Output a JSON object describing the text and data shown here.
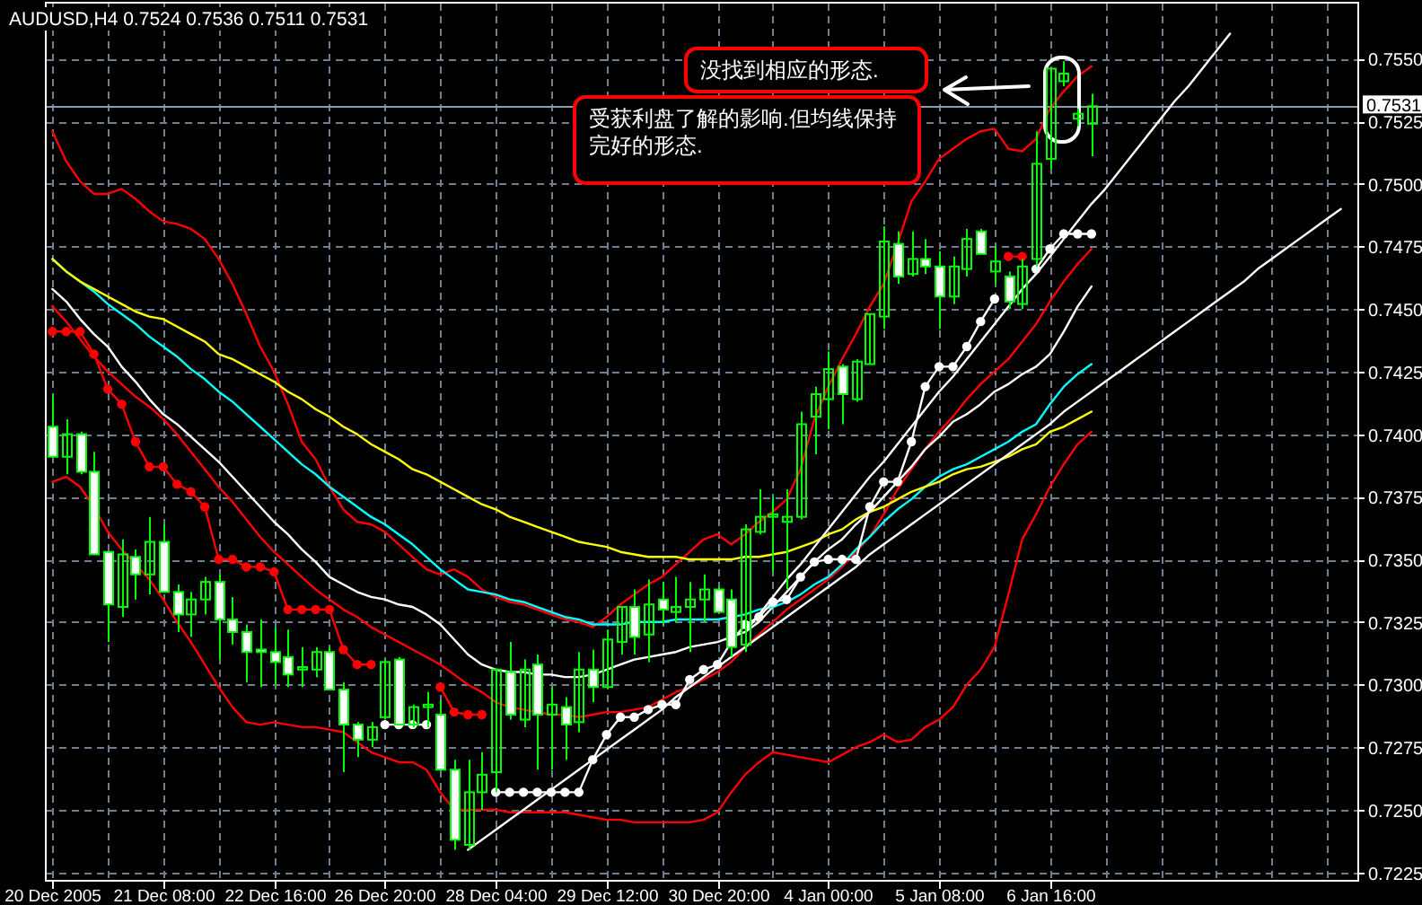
{
  "chart_data": {
    "type": "candlestick",
    "title": "AUDUSD,H4 0.7524 0.7536 0.7511 0.7531",
    "color": "#00ff00",
    "categories": [
      "20 Dec 2005",
      null,
      null,
      null,
      null,
      null,
      null,
      null,
      "21 Dec 08:00",
      null,
      null,
      null,
      null,
      null,
      null,
      null,
      "22 Dec 16:00",
      null,
      null,
      null,
      null,
      null,
      null,
      null,
      "26 Dec 20:00",
      null,
      null,
      null,
      null,
      null,
      null,
      null,
      "28 Dec 04:00",
      null,
      null,
      null,
      null,
      null,
      null,
      null,
      "29 Dec 12:00",
      null,
      null,
      null,
      null,
      null,
      null,
      null,
      "30 Dec 20:00",
      null,
      null,
      null,
      null,
      null,
      null,
      null,
      "4 Jan 00:00",
      null,
      null,
      null,
      null,
      null,
      null,
      null,
      "5 Jan 08:00",
      null,
      null,
      null,
      null,
      null,
      null,
      null,
      "6 Jan 16:00",
      null,
      null,
      null,
      null,
      null,
      null,
      null,
      null,
      null,
      null,
      null,
      null,
      null,
      null,
      null,
      null,
      null,
      null,
      null,
      null,
      null
    ],
    "ohlc": [
      [
        0.7403,
        0.7416,
        0.7391,
        0.7391
      ],
      [
        0.7391,
        0.7406,
        0.7384,
        0.74
      ],
      [
        0.74,
        0.7401,
        0.7384,
        0.7385
      ],
      [
        0.7385,
        0.7393,
        0.7352,
        0.7352
      ],
      [
        0.7353,
        0.7353,
        0.7317,
        0.7332
      ],
      [
        0.7331,
        0.7358,
        0.7327,
        0.7352
      ],
      [
        0.7351,
        0.7354,
        0.7334,
        0.7344
      ],
      [
        0.7344,
        0.7367,
        0.7336,
        0.7357
      ],
      [
        0.7357,
        0.7364,
        0.7337,
        0.7337
      ],
      [
        0.7337,
        0.734,
        0.7321,
        0.7328
      ],
      [
        0.7328,
        0.7337,
        0.7319,
        0.7334
      ],
      [
        0.7334,
        0.7343,
        0.7328,
        0.7341
      ],
      [
        0.7341,
        0.7344,
        0.731,
        0.7326
      ],
      [
        0.7326,
        0.7335,
        0.7316,
        0.7321
      ],
      [
        0.7321,
        0.7324,
        0.7301,
        0.7313
      ],
      [
        0.7314,
        0.7326,
        0.7299,
        0.7313
      ],
      [
        0.7313,
        0.7323,
        0.73,
        0.7309
      ],
      [
        0.7311,
        0.7322,
        0.7299,
        0.7304
      ],
      [
        0.7306,
        0.7315,
        0.7299,
        0.7307
      ],
      [
        0.7306,
        0.7315,
        0.7303,
        0.7313
      ],
      [
        0.7313,
        0.7315,
        0.7298,
        0.7298
      ],
      [
        0.7298,
        0.7301,
        0.7265,
        0.7284
      ],
      [
        0.7284,
        0.7285,
        0.7271,
        0.7278
      ],
      [
        0.7278,
        0.7285,
        0.7275,
        0.7283
      ],
      [
        0.7287,
        0.731,
        0.7286,
        0.7309
      ],
      [
        0.731,
        0.7311,
        0.7284,
        0.7284
      ],
      [
        0.7284,
        0.7292,
        0.7283,
        0.7291
      ],
      [
        0.7291,
        0.7297,
        0.7283,
        0.7292
      ],
      [
        0.7288,
        0.7294,
        0.7266,
        0.7266
      ],
      [
        0.7266,
        0.727,
        0.7234,
        0.7238
      ],
      [
        0.7236,
        0.727,
        0.7234,
        0.7257
      ],
      [
        0.7257,
        0.7273,
        0.725,
        0.7264
      ],
      [
        0.7265,
        0.7306,
        0.7257,
        0.7306
      ],
      [
        0.7305,
        0.7317,
        0.7286,
        0.7288
      ],
      [
        0.7286,
        0.731,
        0.7283,
        0.7306
      ],
      [
        0.7308,
        0.7312,
        0.7266,
        0.7288
      ],
      [
        0.7288,
        0.7299,
        0.7266,
        0.7292
      ],
      [
        0.7291,
        0.7295,
        0.727,
        0.7284
      ],
      [
        0.7285,
        0.7313,
        0.7281,
        0.7306
      ],
      [
        0.7306,
        0.7314,
        0.7293,
        0.7299
      ],
      [
        0.7299,
        0.7322,
        0.7299,
        0.7318
      ],
      [
        0.7317,
        0.7331,
        0.7312,
        0.7331
      ],
      [
        0.7331,
        0.7338,
        0.7312,
        0.7319
      ],
      [
        0.732,
        0.7342,
        0.7309,
        0.7332
      ],
      [
        0.7334,
        0.7341,
        0.7324,
        0.733
      ],
      [
        0.7329,
        0.7343,
        0.7325,
        0.7331
      ],
      [
        0.7331,
        0.7341,
        0.7313,
        0.7334
      ],
      [
        0.7334,
        0.7344,
        0.7325,
        0.7338
      ],
      [
        0.7338,
        0.7339,
        0.7329,
        0.7329
      ],
      [
        0.7334,
        0.7338,
        0.7311,
        0.7315
      ],
      [
        0.7316,
        0.7364,
        0.7313,
        0.7362
      ],
      [
        0.7361,
        0.7378,
        0.736,
        0.7367
      ],
      [
        0.7367,
        0.7375,
        0.7345,
        0.7368
      ],
      [
        0.7365,
        0.7378,
        0.7338,
        0.7367
      ],
      [
        0.7367,
        0.7409,
        0.7366,
        0.7404
      ],
      [
        0.7407,
        0.7419,
        0.7392,
        0.7416
      ],
      [
        0.7414,
        0.7433,
        0.7402,
        0.7426
      ],
      [
        0.7427,
        0.7428,
        0.7404,
        0.7416
      ],
      [
        0.7414,
        0.743,
        0.7413,
        0.7429
      ],
      [
        0.7428,
        0.7448,
        0.7428,
        0.7448
      ],
      [
        0.7447,
        0.7483,
        0.7442,
        0.7477
      ],
      [
        0.7476,
        0.7481,
        0.746,
        0.7463
      ],
      [
        0.7464,
        0.7481,
        0.7463,
        0.747
      ],
      [
        0.747,
        0.7478,
        0.7464,
        0.7467
      ],
      [
        0.7467,
        0.7473,
        0.7442,
        0.7455
      ],
      [
        0.7455,
        0.7471,
        0.7452,
        0.7467
      ],
      [
        0.7466,
        0.7482,
        0.7463,
        0.7478
      ],
      [
        0.7481,
        0.7482,
        0.7472,
        0.7472
      ],
      [
        0.7465,
        0.7475,
        0.746,
        0.7469
      ],
      [
        0.7463,
        0.7465,
        0.745,
        0.7453
      ],
      [
        0.7452,
        0.747,
        0.745,
        0.7467
      ],
      [
        0.747,
        0.7521,
        0.7467,
        0.7508
      ],
      [
        0.751,
        0.7546,
        0.7506,
        0.7546
      ],
      [
        0.7541,
        0.7549,
        0.7539,
        0.7544
      ],
      [
        0.7526,
        0.753,
        0.7523,
        0.7528
      ],
      [
        0.7524,
        0.7536,
        0.7511,
        0.7531
      ],
      null,
      null,
      null,
      null,
      null,
      null,
      null,
      null,
      null,
      null,
      null,
      null,
      null,
      null,
      null,
      null,
      null,
      null
    ],
    "ylim": [
      0.7222,
      0.7572
    ],
    "yticks": [
      {
        "value": 0.7225,
        "label": "0.7225"
      },
      {
        "value": 0.725,
        "label": "0.7250"
      },
      {
        "value": 0.7275,
        "label": "0.7275"
      },
      {
        "value": 0.73,
        "label": "0.7300"
      },
      {
        "value": 0.7325,
        "label": "0.7325"
      },
      {
        "value": 0.735,
        "label": "0.7350"
      },
      {
        "value": 0.7375,
        "label": "0.7375"
      },
      {
        "value": 0.74,
        "label": "0.7400"
      },
      {
        "value": 0.7425,
        "label": "0.7425"
      },
      {
        "value": 0.745,
        "label": "0.7450"
      },
      {
        "value": 0.7475,
        "label": "0.7475"
      },
      {
        "value": 0.75,
        "label": "0.7500"
      },
      {
        "value": 0.7525,
        "label": "0.7525"
      },
      {
        "value": 0.755,
        "label": "0.7550"
      }
    ],
    "grid": true,
    "series": [
      {
        "type": "line",
        "color": "#ff0000",
        "values": [
          0.7521,
          0.7509,
          0.7501,
          0.7496,
          0.7496,
          0.7498,
          0.7494,
          0.7489,
          0.7485,
          0.7484,
          0.7482,
          0.7478,
          0.747,
          0.746,
          0.7448,
          0.7435,
          0.7425,
          0.7412,
          0.7397,
          0.739,
          0.7379,
          0.737,
          0.7365,
          0.7364,
          0.7361,
          0.7356,
          0.7351,
          0.7346,
          0.7344,
          0.7346,
          0.7343,
          0.7338,
          0.7335,
          0.7333,
          0.7332,
          0.733,
          0.7328,
          0.7326,
          0.7325,
          0.7323,
          0.7327,
          0.7332,
          0.7336,
          0.734,
          0.7343,
          0.7348,
          0.7353,
          0.7358,
          0.736,
          0.7356,
          0.736,
          0.7365,
          0.7369,
          0.7374,
          0.7386,
          0.7406,
          0.7419,
          0.743,
          0.744,
          0.7451,
          0.746,
          0.7476,
          0.7493,
          0.7501,
          0.751,
          0.7514,
          0.7518,
          0.7521,
          0.7522,
          0.7514,
          0.7513,
          0.7518,
          0.753,
          0.7537,
          0.7543,
          0.7547,
          null,
          null,
          null,
          null,
          null,
          null,
          null,
          null,
          null,
          null,
          null,
          null,
          null,
          null,
          null,
          null,
          null,
          null
        ]
      },
      {
        "type": "line",
        "color": "#ff0000",
        "values": [
          0.7451,
          0.7445,
          0.7438,
          0.7431,
          0.7425,
          0.742,
          0.7415,
          0.7411,
          0.7406,
          0.74,
          0.7393,
          0.7386,
          0.7379,
          0.7373,
          0.7366,
          0.7359,
          0.7353,
          0.7348,
          0.7343,
          0.7338,
          0.7334,
          0.733,
          0.7327,
          0.7323,
          0.732,
          0.7317,
          0.7314,
          0.7311,
          0.7308,
          0.7304,
          0.73,
          0.7297,
          0.7293,
          0.7291,
          0.729,
          0.7289,
          0.7288,
          0.7288,
          0.7287,
          0.7288,
          0.7289,
          0.7289,
          0.729,
          0.7291,
          0.7294,
          0.7297,
          0.7299,
          0.7302,
          0.7305,
          0.7309,
          0.7315,
          0.732,
          0.7325,
          0.733,
          0.7334,
          0.7338,
          0.7342,
          0.7347,
          0.7353,
          0.7359,
          0.7368,
          0.7378,
          0.7386,
          0.7394,
          0.7401,
          0.7407,
          0.7414,
          0.742,
          0.7425,
          0.743,
          0.7437,
          0.7444,
          0.7453,
          0.7461,
          0.7468,
          0.7474,
          null,
          null,
          null,
          null,
          null,
          null,
          null,
          null,
          null,
          null,
          null,
          null,
          null,
          null,
          null,
          null,
          null,
          null
        ]
      },
      {
        "type": "line",
        "color": "#ff0000",
        "values": [
          0.7381,
          0.7383,
          0.7379,
          0.7371,
          0.7361,
          0.7354,
          0.7348,
          0.7342,
          0.7334,
          0.7325,
          0.7317,
          0.7308,
          0.7299,
          0.7291,
          0.7285,
          0.7284,
          0.7285,
          0.7284,
          0.7283,
          0.7283,
          0.7282,
          0.7281,
          0.7277,
          0.7273,
          0.7271,
          0.7269,
          0.7269,
          0.7266,
          0.7257,
          0.725,
          0.725,
          0.725,
          0.725,
          0.7249,
          0.7249,
          0.7249,
          0.7249,
          0.7249,
          0.7248,
          0.7247,
          0.7246,
          0.7246,
          0.7245,
          0.7245,
          0.7245,
          0.7245,
          0.7245,
          0.7246,
          0.7249,
          0.7257,
          0.7264,
          0.7269,
          0.7273,
          0.7272,
          0.7271,
          0.727,
          0.7269,
          0.7272,
          0.7275,
          0.7277,
          0.728,
          0.7277,
          0.7278,
          0.7283,
          0.7286,
          0.7291,
          0.73,
          0.7306,
          0.7315,
          0.7336,
          0.7358,
          0.7368,
          0.7379,
          0.7388,
          0.7396,
          0.7401,
          null,
          null,
          null,
          null,
          null,
          null,
          null,
          null,
          null,
          null,
          null,
          null,
          null,
          null,
          null,
          null,
          null,
          null
        ]
      },
      {
        "type": "line",
        "color": "#ffffff",
        "values": [
          0.7458,
          0.7453,
          0.7446,
          0.744,
          0.7435,
          0.7427,
          0.7421,
          0.7414,
          0.7408,
          0.7404,
          0.7399,
          0.7394,
          0.7389,
          0.7383,
          0.7377,
          0.7371,
          0.7365,
          0.736,
          0.7354,
          0.7349,
          0.7343,
          0.734,
          0.7337,
          0.7335,
          0.7334,
          0.7332,
          0.7331,
          0.7328,
          0.7324,
          0.7318,
          0.7312,
          0.7308,
          0.7306,
          0.7305,
          0.7305,
          0.7304,
          0.7304,
          0.7303,
          0.7303,
          0.7304,
          0.7306,
          0.7308,
          0.731,
          0.7311,
          0.7312,
          0.7313,
          0.7315,
          0.7316,
          0.7317,
          0.7319,
          0.7321,
          0.7325,
          0.7331,
          0.7337,
          0.7343,
          0.7349,
          0.7354,
          0.7358,
          0.7364,
          0.7369,
          0.7375,
          0.7381,
          0.7387,
          0.7394,
          0.7399,
          0.7405,
          0.7408,
          0.7412,
          0.7417,
          0.742,
          0.7424,
          0.7427,
          0.7432,
          0.7441,
          0.7451,
          0.7459,
          null,
          null,
          null,
          null,
          null,
          null,
          null,
          null,
          null,
          null,
          null,
          null,
          null,
          null,
          null,
          null,
          null,
          null
        ]
      },
      {
        "type": "line",
        "color": "#00ffff",
        "values": [
          0.747,
          0.7465,
          0.7461,
          0.7457,
          0.7452,
          0.7448,
          0.7444,
          0.7439,
          0.7435,
          0.7431,
          0.7426,
          0.7422,
          0.7417,
          0.7413,
          0.7408,
          0.7403,
          0.7398,
          0.7393,
          0.7388,
          0.7384,
          0.7379,
          0.7375,
          0.7371,
          0.7367,
          0.7364,
          0.736,
          0.7356,
          0.7351,
          0.7346,
          0.7342,
          0.7338,
          0.7337,
          0.7336,
          0.7334,
          0.7333,
          0.7331,
          0.7329,
          0.7327,
          0.7326,
          0.7324,
          0.7324,
          0.7324,
          0.7325,
          0.7325,
          0.7325,
          0.7326,
          0.7326,
          0.7326,
          0.7326,
          0.7327,
          0.7328,
          0.733,
          0.7331,
          0.7333,
          0.7336,
          0.734,
          0.7343,
          0.7348,
          0.7354,
          0.7359,
          0.7365,
          0.737,
          0.7374,
          0.7379,
          0.7383,
          0.7386,
          0.7388,
          0.7391,
          0.7394,
          0.7397,
          0.7401,
          0.7404,
          0.7412,
          0.7419,
          0.7424,
          0.7428,
          null,
          null,
          null,
          null,
          null,
          null,
          null,
          null,
          null,
          null,
          null,
          null,
          null,
          null,
          null,
          null,
          null,
          null
        ]
      },
      {
        "type": "line",
        "color": "#ffff00",
        "values": [
          0.747,
          0.7465,
          0.7461,
          0.7458,
          0.7455,
          0.7452,
          0.7449,
          0.7447,
          0.7446,
          0.7443,
          0.744,
          0.7437,
          0.7432,
          0.743,
          0.7427,
          0.7424,
          0.7421,
          0.7417,
          0.7414,
          0.741,
          0.7407,
          0.7403,
          0.74,
          0.7396,
          0.7393,
          0.739,
          0.7386,
          0.7384,
          0.7381,
          0.7378,
          0.7375,
          0.7372,
          0.737,
          0.7367,
          0.7365,
          0.7363,
          0.7361,
          0.7359,
          0.7357,
          0.7356,
          0.7355,
          0.7353,
          0.7352,
          0.7351,
          0.7351,
          0.7351,
          0.735,
          0.735,
          0.735,
          0.735,
          0.7351,
          0.7351,
          0.7352,
          0.7353,
          0.7355,
          0.7357,
          0.736,
          0.7362,
          0.7366,
          0.7369,
          0.7371,
          0.7374,
          0.7377,
          0.7379,
          0.7381,
          0.7384,
          0.7386,
          0.7387,
          0.7389,
          0.7391,
          0.7394,
          0.7396,
          0.7401,
          0.7403,
          0.7406,
          0.7409,
          null,
          null,
          null,
          null,
          null,
          null,
          null,
          null,
          null,
          null,
          null,
          null,
          null,
          null,
          null,
          null,
          null,
          null
        ]
      },
      {
        "type": "line",
        "color": "#ff0000",
        "marker": "circle",
        "values": [
          0.7441,
          0.7441,
          0.7441,
          0.7432,
          0.7418,
          0.7412,
          0.7397,
          0.7387,
          0.7387,
          0.738,
          0.7377,
          0.7371,
          0.735,
          0.735,
          0.7347,
          0.7347,
          0.7345,
          0.733,
          0.733,
          0.733,
          0.733,
          0.7314,
          0.7308,
          0.7308,
          null,
          null,
          null,
          null,
          0.7299,
          0.7289,
          0.7288,
          0.7288,
          null,
          null,
          null,
          null,
          null,
          null,
          null,
          null,
          null,
          null,
          null,
          null,
          null,
          null,
          null,
          null,
          null,
          null,
          null,
          null,
          null,
          null,
          null,
          null,
          null,
          null,
          null,
          null,
          null,
          null,
          null,
          null,
          null,
          null,
          null,
          null,
          null,
          0.7471,
          0.7471,
          null,
          null,
          null,
          null,
          null,
          null,
          null,
          null,
          null,
          null,
          null,
          null,
          null,
          null,
          null,
          null,
          null,
          null,
          null,
          null,
          null,
          null,
          null
        ]
      },
      {
        "type": "line",
        "color": "#ffffff",
        "marker": "circle",
        "values": [
          null,
          null,
          null,
          null,
          null,
          null,
          null,
          null,
          null,
          null,
          null,
          null,
          null,
          null,
          null,
          null,
          null,
          null,
          null,
          null,
          null,
          null,
          null,
          null,
          0.7284,
          0.7284,
          0.7284,
          0.7284,
          null,
          null,
          null,
          null,
          0.7257,
          0.7257,
          0.7257,
          0.7257,
          0.7257,
          0.7257,
          0.7257,
          0.727,
          0.728,
          0.7287,
          0.7287,
          0.729,
          0.7292,
          0.7292,
          0.7302,
          0.7306,
          0.7308,
          0.7317,
          0.7324,
          0.7327,
          0.7333,
          0.7334,
          0.7343,
          0.7349,
          0.735,
          0.735,
          0.735,
          0.7371,
          0.7381,
          0.7381,
          0.7397,
          0.7419,
          0.7427,
          0.7427,
          0.7435,
          0.7445,
          0.7454,
          null,
          null,
          0.7466,
          0.7474,
          0.748,
          0.748,
          0.748,
          null,
          null,
          null,
          null,
          null,
          null,
          null,
          null,
          null,
          null,
          null,
          null,
          null,
          null,
          null,
          null,
          null,
          null
        ]
      },
      {
        "type": "line",
        "color": "#ffffff",
        "values": [
          null,
          null,
          null,
          null,
          null,
          null,
          null,
          null,
          null,
          null,
          null,
          null,
          null,
          null,
          null,
          null,
          null,
          null,
          null,
          null,
          null,
          null,
          null,
          null,
          null,
          null,
          null,
          null,
          null,
          null,
          null,
          null,
          null,
          null,
          null,
          null,
          null,
          null,
          null,
          null,
          null,
          null,
          null,
          null,
          null,
          null,
          null,
          null,
          null,
          null,
          0.7321,
          0.7328,
          0.7335,
          0.7342,
          0.7348,
          0.7355,
          0.7362,
          0.7369,
          0.7376,
          0.7383,
          0.7389,
          0.7396,
          0.7403,
          0.741,
          0.7417,
          0.7423,
          0.743,
          0.7437,
          0.7444,
          0.7451,
          0.7458,
          0.7464,
          0.7471,
          0.7478,
          0.7485,
          0.7492,
          0.7498,
          0.7505,
          0.7512,
          0.7519,
          0.7526,
          0.7533,
          0.7539,
          0.7546,
          0.7553,
          0.756,
          null,
          null,
          null,
          null,
          null,
          null,
          null,
          null
        ]
      },
      {
        "type": "line",
        "color": "#ffffff",
        "values": [
          null,
          null,
          null,
          null,
          null,
          null,
          null,
          null,
          null,
          null,
          null,
          null,
          null,
          null,
          null,
          null,
          null,
          null,
          null,
          null,
          null,
          null,
          null,
          null,
          null,
          null,
          null,
          null,
          null,
          null,
          0.7234,
          0.7238,
          0.7242,
          0.7246,
          0.725,
          0.7254,
          0.7258,
          0.7262,
          0.7266,
          0.727,
          0.7274,
          0.7278,
          0.7282,
          0.7286,
          0.729,
          0.7295,
          0.7299,
          0.7303,
          0.7307,
          0.7311,
          0.7315,
          0.7319,
          0.7323,
          0.7327,
          0.7331,
          0.7335,
          0.7339,
          0.7343,
          0.7347,
          0.7352,
          0.7356,
          0.736,
          0.7364,
          0.7368,
          0.7372,
          0.7376,
          0.738,
          0.7384,
          0.7388,
          0.7392,
          0.7396,
          0.74,
          0.7404,
          0.7409,
          0.7413,
          0.7417,
          0.7421,
          0.7425,
          0.7429,
          0.7433,
          0.7437,
          0.7441,
          0.7445,
          0.7449,
          0.7453,
          0.7457,
          0.7461,
          0.7466,
          0.747,
          0.7474,
          0.7478,
          0.7482,
          0.7486,
          0.749
        ]
      }
    ],
    "ref_lines": [
      {
        "axis": "y",
        "value": 0.7531,
        "label": "0.7531",
        "color": "#8a9ab0"
      }
    ],
    "annotations": [
      "没找到相应的形态.",
      "受获利盘了解的影响.但均线保持完好的形态."
    ]
  }
}
